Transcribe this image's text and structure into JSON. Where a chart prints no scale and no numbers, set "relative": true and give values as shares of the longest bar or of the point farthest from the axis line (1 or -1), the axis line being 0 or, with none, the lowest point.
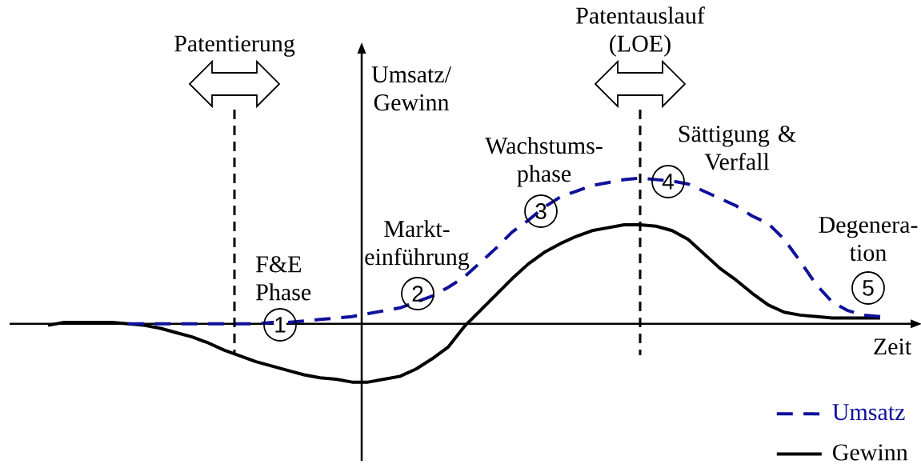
{
  "chart_data": {
    "type": "line",
    "relative": true,
    "xlabel": "Zeit",
    "ylabel": "Umsatz/ Gewinn",
    "legend": "bottom right",
    "categories": [
      null,
      null,
      null,
      null,
      null,
      null,
      null,
      null,
      null,
      null,
      null,
      null,
      null,
      null,
      null,
      null,
      null,
      null,
      null,
      null,
      null,
      null,
      null,
      null,
      null,
      null,
      null,
      null,
      null,
      null,
      null,
      null,
      null,
      null,
      null,
      null,
      null,
      null,
      null,
      null,
      null,
      null,
      null,
      null,
      null,
      null,
      null,
      null,
      null,
      null,
      null,
      null,
      null
    ],
    "series": [
      {
        "name": "Umsatz",
        "color": "#10109b",
        "line_style": "dashed",
        "values": [
          null,
          null,
          null,
          null,
          null,
          0,
          0,
          0,
          0,
          0,
          0,
          0,
          0,
          0,
          0.01,
          0.01,
          0.02,
          0.03,
          0.04,
          0.05,
          0.07,
          0.09,
          0.11,
          0.15,
          0.19,
          0.25,
          0.32,
          0.42,
          0.52,
          0.63,
          0.71,
          0.8,
          0.87,
          0.91,
          0.95,
          0.97,
          0.99,
          1,
          0.99,
          0.98,
          0.96,
          0.91,
          0.86,
          0.81,
          0.74,
          0.69,
          0.58,
          0.43,
          0.27,
          0.15,
          0.09,
          0.06,
          0.05
        ]
      },
      {
        "name": "Gewinn",
        "color": "#000000",
        "line_style": "solid",
        "values": [
          -0.01,
          0.01,
          0.01,
          0.01,
          0.01,
          0,
          -0.01,
          -0.03,
          -0.06,
          -0.09,
          -0.13,
          -0.18,
          -0.22,
          -0.26,
          -0.29,
          -0.32,
          -0.35,
          -0.37,
          -0.38,
          -0.4,
          -0.4,
          -0.38,
          -0.36,
          -0.31,
          -0.24,
          -0.16,
          -0.02,
          0.09,
          0.2,
          0.31,
          0.41,
          0.49,
          0.55,
          0.6,
          0.64,
          0.66,
          0.68,
          0.68,
          0.67,
          0.64,
          0.58,
          0.48,
          0.38,
          0.3,
          0.21,
          0.13,
          0.08,
          0.06,
          0.05,
          0.04,
          0.04,
          0.04,
          0.04
        ]
      }
    ],
    "annotations": [
      "Patentierung",
      "Patentauslauf (LOE)",
      "F&E Phase",
      "1",
      "Markt-einführung",
      "2",
      "Wachstums-phase",
      "3",
      "Sättigung & Verfall",
      "4",
      "Degenera-tion",
      "5"
    ]
  }
}
